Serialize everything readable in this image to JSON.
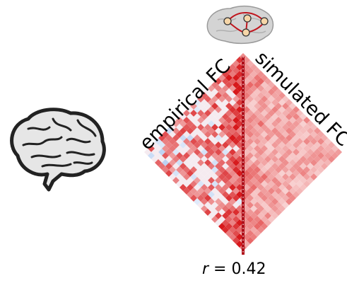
{
  "labels": {
    "empirical": "empirical FC",
    "simulated": "simulated FC"
  },
  "correlation": {
    "symbol": "r",
    "equals": " = ",
    "value": "0.42"
  },
  "colors": {
    "strong_positive": "#d7191c",
    "weak_positive": "#f8c8c8",
    "negative": "#2b6fd6",
    "network_edge": "#c0151d",
    "network_node": "#f6d6a8",
    "brain_fill": "#d9d9d9"
  },
  "icons": [
    "brain-outline-icon",
    "brain-network-icon"
  ]
}
